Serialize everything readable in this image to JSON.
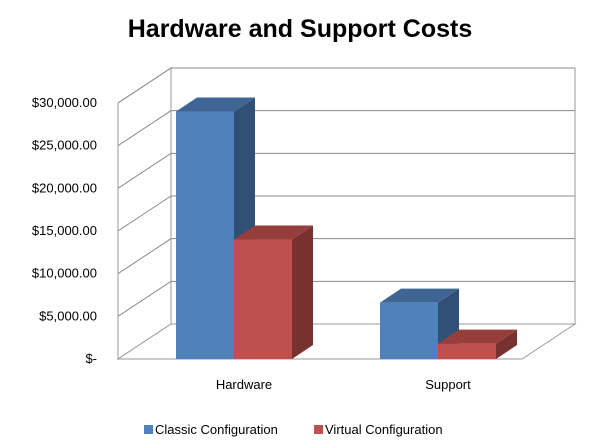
{
  "chart_data": {
    "type": "bar",
    "title": "Hardware and Support Costs",
    "categories": [
      "Hardware",
      "Support"
    ],
    "series": [
      {
        "name": "Classic Configuration",
        "values": [
          29000,
          6600
        ],
        "color": "#4F81BD"
      },
      {
        "name": "Virtual Configuration",
        "values": [
          14000,
          1800
        ],
        "color": "#C0504D"
      }
    ],
    "y_ticks": [
      0,
      5000,
      10000,
      15000,
      20000,
      25000,
      30000
    ],
    "y_tick_labels": [
      "$-",
      "$5,000.00",
      "$10,000.00",
      "$15,000.00",
      "$20,000.00",
      "$25,000.00",
      "$30,000.00"
    ],
    "ylim": [
      0,
      30000
    ],
    "grid": true,
    "legend_position": "bottom",
    "style": "3d-clustered-column"
  }
}
